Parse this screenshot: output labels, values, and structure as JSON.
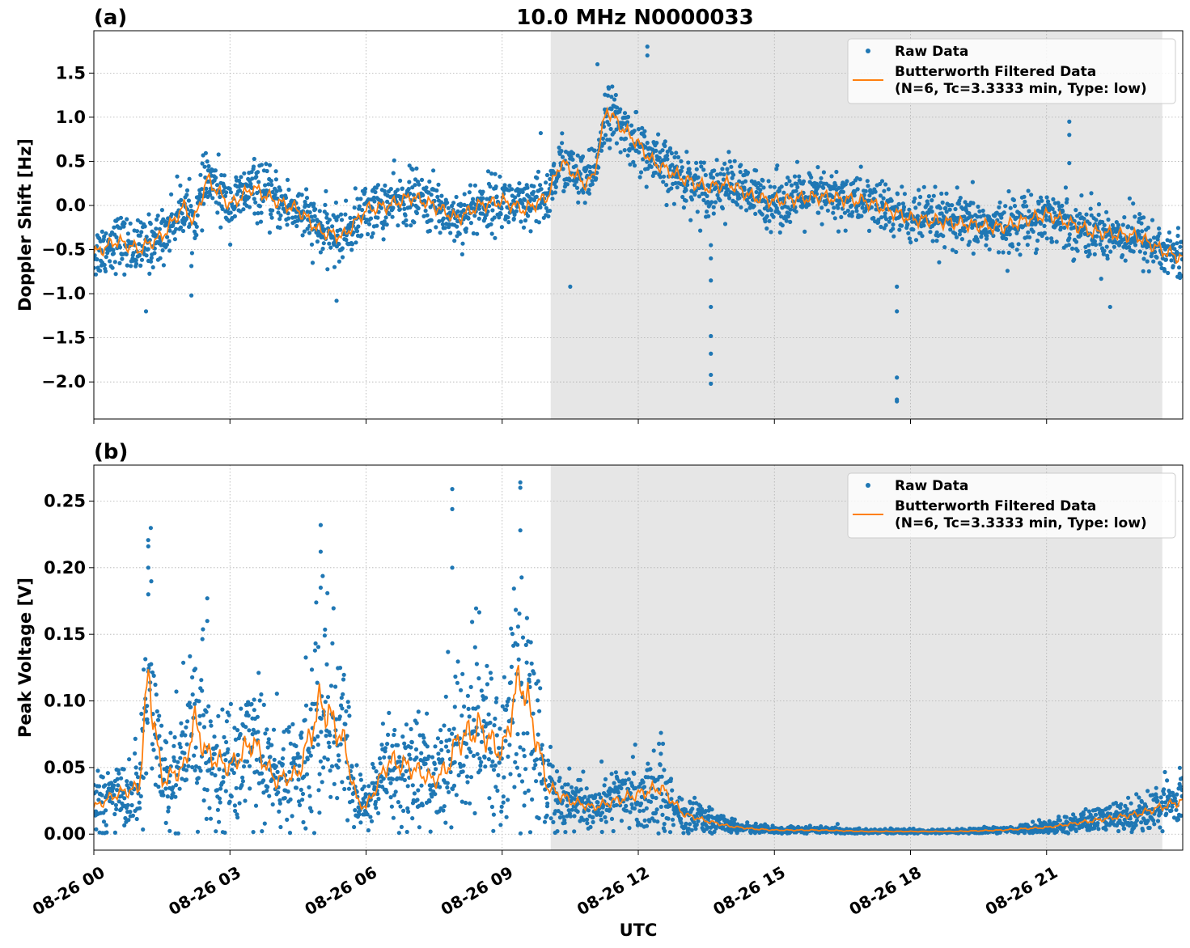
{
  "title": "10.0 MHz N0000033",
  "xlabel": "UTC",
  "colors": {
    "raw": "#1f77b4",
    "filtered": "#ff7f0e",
    "shade": "#e6e6e6",
    "grid": "#b0b0b0"
  },
  "chart_data": [
    {
      "type": "scatter",
      "panel_label": "(a)",
      "ylabel": "Doppler Shift [Hz]",
      "xlim_hours": [
        0,
        24
      ],
      "ylim": [
        -2.42,
        1.98
      ],
      "yticks": [
        -2.0,
        -1.5,
        -1.0,
        -0.5,
        0.0,
        0.5,
        1.0,
        1.5
      ],
      "ytick_labels": [
        "−2.0",
        "−1.5",
        "−1.0",
        "−0.5",
        "0.0",
        "0.5",
        "1.0",
        "1.5"
      ],
      "shaded_region_hours": [
        10.07,
        23.55
      ],
      "grid": true,
      "legend_position": "top-right",
      "legend": [
        "Raw Data",
        "Butterworth Filtered Data",
        "(N=6, Tc=3.3333 min, Type: low)"
      ],
      "series": [
        {
          "name": "Raw Data",
          "style": "points"
        },
        {
          "name": "Butterworth Filtered Data (N=6, Tc=3.3333 min, Type: low)",
          "style": "line"
        }
      ],
      "filtered_trend": {
        "x_hours": [
          0,
          0.5,
          1,
          1.5,
          2,
          2.2,
          2.5,
          3,
          3.5,
          4,
          4.5,
          5,
          5.5,
          6,
          6.5,
          7,
          7.5,
          8,
          8.5,
          9,
          9.5,
          10,
          10.3,
          10.8,
          11,
          11.3,
          11.6,
          12,
          12.3,
          13,
          13.5,
          14,
          14.5,
          15,
          16,
          17,
          18,
          19,
          20,
          21,
          22,
          23,
          23.5,
          24
        ],
        "y": [
          -0.55,
          -0.4,
          -0.5,
          -0.35,
          0.0,
          -0.2,
          0.3,
          0.0,
          0.2,
          0.05,
          -0.05,
          -0.3,
          -0.35,
          -0.05,
          0.0,
          0.1,
          0.0,
          -0.15,
          0.0,
          0.05,
          -0.05,
          0.1,
          0.5,
          0.25,
          0.3,
          1.1,
          0.9,
          0.7,
          0.5,
          0.3,
          0.2,
          0.25,
          0.1,
          0.05,
          0.1,
          0.05,
          -0.15,
          -0.2,
          -0.25,
          -0.1,
          -0.3,
          -0.35,
          -0.5,
          -0.6
        ]
      },
      "raw_spread_hz": 0.28,
      "outliers": [
        {
          "x": 13.6,
          "y": -0.45
        },
        {
          "x": 13.6,
          "y": -0.6
        },
        {
          "x": 13.6,
          "y": -0.85
        },
        {
          "x": 13.6,
          "y": -1.15
        },
        {
          "x": 13.6,
          "y": -1.48
        },
        {
          "x": 13.6,
          "y": -1.68
        },
        {
          "x": 13.6,
          "y": -1.92
        },
        {
          "x": 13.6,
          "y": -2.02
        },
        {
          "x": 17.7,
          "y": -0.92
        },
        {
          "x": 17.7,
          "y": -1.2
        },
        {
          "x": 17.7,
          "y": -1.95
        },
        {
          "x": 17.7,
          "y": -2.2
        },
        {
          "x": 17.7,
          "y": -2.22
        },
        {
          "x": 12.2,
          "y": 1.8
        },
        {
          "x": 12.2,
          "y": 1.7
        },
        {
          "x": 11.1,
          "y": 1.6
        },
        {
          "x": 21.5,
          "y": 0.95
        },
        {
          "x": 21.5,
          "y": 0.8
        },
        {
          "x": 21.5,
          "y": 0.48
        },
        {
          "x": 22.4,
          "y": -1.15
        },
        {
          "x": 1.15,
          "y": -1.2
        },
        {
          "x": 2.15,
          "y": -1.02
        },
        {
          "x": 5.35,
          "y": -1.08
        },
        {
          "x": 9.85,
          "y": 0.82
        },
        {
          "x": 10.5,
          "y": -0.92
        }
      ]
    },
    {
      "type": "scatter",
      "panel_label": "(b)",
      "ylabel": "Peak Voltage [V]",
      "xlim_hours": [
        0,
        24
      ],
      "ylim": [
        -0.012,
        0.277
      ],
      "yticks": [
        0.0,
        0.05,
        0.1,
        0.15,
        0.2,
        0.25
      ],
      "ytick_labels": [
        "0.00",
        "0.05",
        "0.10",
        "0.15",
        "0.20",
        "0.25"
      ],
      "xticks_hours": [
        0,
        3,
        6,
        9,
        12,
        15,
        18,
        21
      ],
      "xtick_labels": [
        "08-26 00",
        "08-26 03",
        "08-26 06",
        "08-26 09",
        "08-26 12",
        "08-26 15",
        "08-26 18",
        "08-26 21"
      ],
      "shaded_region_hours": [
        10.07,
        23.55
      ],
      "grid": true,
      "legend_position": "top-right",
      "legend": [
        "Raw Data",
        "Butterworth Filtered Data",
        "(N=6, Tc=3.3333 min, Type: low)"
      ],
      "series": [
        {
          "name": "Raw Data",
          "style": "points"
        },
        {
          "name": "Butterworth Filtered Data (N=6, Tc=3.3333 min, Type: low)",
          "style": "line"
        }
      ],
      "filtered_trend": {
        "x_hours": [
          0,
          0.5,
          1,
          1.2,
          1.5,
          2,
          2.2,
          2.5,
          3,
          3.5,
          4,
          4.5,
          5,
          5.5,
          5.8,
          6,
          6.5,
          7,
          7.5,
          7.8,
          8,
          8.5,
          9,
          9.4,
          9.7,
          10,
          10.5,
          11,
          11.5,
          12,
          12.5,
          13,
          13.5,
          14,
          14.5,
          15,
          16,
          17,
          18,
          19,
          20,
          21,
          22,
          23,
          24
        ],
        "y": [
          0.02,
          0.03,
          0.035,
          0.12,
          0.04,
          0.05,
          0.085,
          0.06,
          0.05,
          0.07,
          0.04,
          0.045,
          0.1,
          0.07,
          0.025,
          0.02,
          0.055,
          0.05,
          0.04,
          0.05,
          0.07,
          0.08,
          0.06,
          0.12,
          0.08,
          0.035,
          0.025,
          0.02,
          0.025,
          0.03,
          0.035,
          0.015,
          0.01,
          0.006,
          0.004,
          0.003,
          0.003,
          0.002,
          0.002,
          0.002,
          0.003,
          0.005,
          0.01,
          0.015,
          0.025
        ]
      },
      "outliers": [
        {
          "x": 1.2,
          "y": 0.216
        },
        {
          "x": 1.2,
          "y": 0.2
        },
        {
          "x": 1.2,
          "y": 0.18
        },
        {
          "x": 5.0,
          "y": 0.232
        },
        {
          "x": 5.0,
          "y": 0.212
        },
        {
          "x": 5.0,
          "y": 0.185
        },
        {
          "x": 7.9,
          "y": 0.259
        },
        {
          "x": 7.9,
          "y": 0.244
        },
        {
          "x": 7.9,
          "y": 0.2
        },
        {
          "x": 9.4,
          "y": 0.264
        },
        {
          "x": 9.4,
          "y": 0.26
        },
        {
          "x": 9.4,
          "y": 0.228
        },
        {
          "x": 2.5,
          "y": 0.177
        },
        {
          "x": 2.5,
          "y": 0.16
        },
        {
          "x": 12.5,
          "y": 0.076
        }
      ]
    }
  ]
}
